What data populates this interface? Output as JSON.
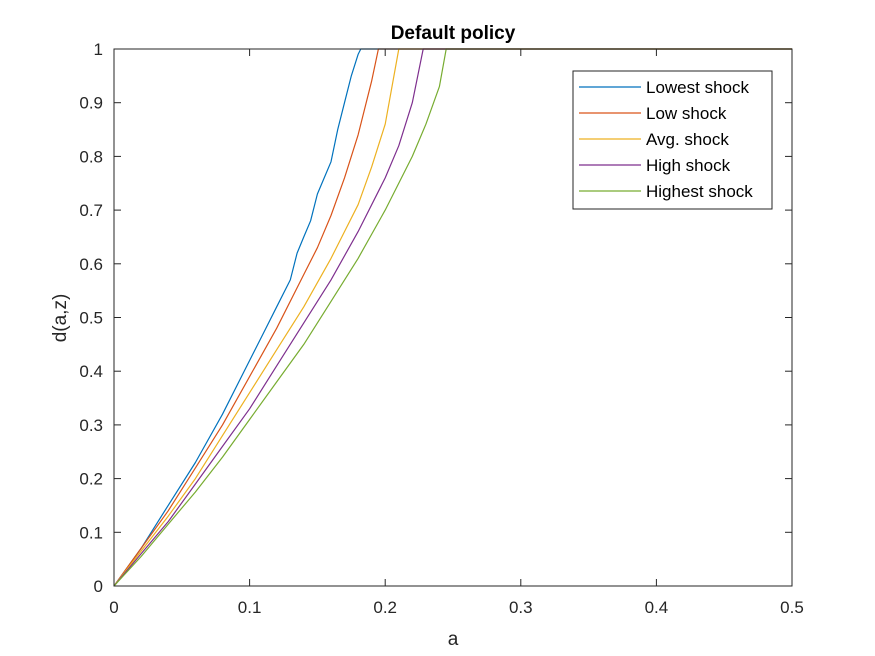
{
  "chart_data": {
    "type": "line",
    "title": "Default policy",
    "xlabel": "a",
    "ylabel": "d(a,z)",
    "xlim": [
      0,
      0.5
    ],
    "ylim": [
      0,
      1
    ],
    "x_ticks": [
      0,
      0.1,
      0.2,
      0.3,
      0.4,
      0.5
    ],
    "x_tick_labels": [
      "0",
      "0.1",
      "0.2",
      "0.3",
      "0.4",
      "0.5"
    ],
    "y_ticks": [
      0,
      0.1,
      0.2,
      0.3,
      0.4,
      0.5,
      0.6,
      0.7,
      0.8,
      0.9,
      1
    ],
    "y_tick_labels": [
      "0",
      "0.1",
      "0.2",
      "0.3",
      "0.4",
      "0.5",
      "0.6",
      "0.7",
      "0.8",
      "0.9",
      "1"
    ],
    "grid": false,
    "legend_position": "top-right",
    "series": [
      {
        "name": "Lowest shock",
        "color": "#0072BD",
        "x": [
          0,
          0.02,
          0.04,
          0.06,
          0.08,
          0.1,
          0.11,
          0.12,
          0.13,
          0.135,
          0.14,
          0.145,
          0.15,
          0.155,
          0.16,
          0.165,
          0.17,
          0.175,
          0.18,
          0.182,
          0.5
        ],
        "y": [
          0,
          0.07,
          0.15,
          0.23,
          0.32,
          0.42,
          0.47,
          0.52,
          0.57,
          0.62,
          0.65,
          0.68,
          0.73,
          0.76,
          0.79,
          0.85,
          0.9,
          0.95,
          0.99,
          1,
          1
        ]
      },
      {
        "name": "Low shock",
        "color": "#D95319",
        "x": [
          0,
          0.02,
          0.04,
          0.06,
          0.08,
          0.1,
          0.12,
          0.14,
          0.15,
          0.16,
          0.17,
          0.18,
          0.19,
          0.195,
          0.5
        ],
        "y": [
          0,
          0.07,
          0.14,
          0.22,
          0.3,
          0.39,
          0.48,
          0.58,
          0.63,
          0.69,
          0.76,
          0.84,
          0.94,
          1,
          1
        ]
      },
      {
        "name": "Avg. shock",
        "color": "#EDB120",
        "x": [
          0,
          0.02,
          0.04,
          0.06,
          0.08,
          0.1,
          0.12,
          0.14,
          0.16,
          0.17,
          0.18,
          0.19,
          0.2,
          0.21,
          0.5
        ],
        "y": [
          0,
          0.065,
          0.13,
          0.2,
          0.28,
          0.36,
          0.44,
          0.52,
          0.61,
          0.66,
          0.71,
          0.78,
          0.86,
          1,
          1
        ]
      },
      {
        "name": "High shock",
        "color": "#7E2F8E",
        "x": [
          0,
          0.02,
          0.04,
          0.06,
          0.08,
          0.1,
          0.12,
          0.14,
          0.16,
          0.18,
          0.2,
          0.21,
          0.22,
          0.228,
          0.5
        ],
        "y": [
          0,
          0.06,
          0.12,
          0.19,
          0.26,
          0.33,
          0.41,
          0.49,
          0.57,
          0.66,
          0.76,
          0.82,
          0.9,
          1,
          1
        ]
      },
      {
        "name": "Highest shock",
        "color": "#77AC30",
        "x": [
          0,
          0.02,
          0.04,
          0.06,
          0.08,
          0.1,
          0.12,
          0.14,
          0.16,
          0.18,
          0.2,
          0.22,
          0.23,
          0.24,
          0.245,
          0.5
        ],
        "y": [
          0,
          0.055,
          0.115,
          0.175,
          0.24,
          0.31,
          0.38,
          0.45,
          0.53,
          0.61,
          0.7,
          0.8,
          0.86,
          0.93,
          1,
          1
        ]
      }
    ]
  }
}
